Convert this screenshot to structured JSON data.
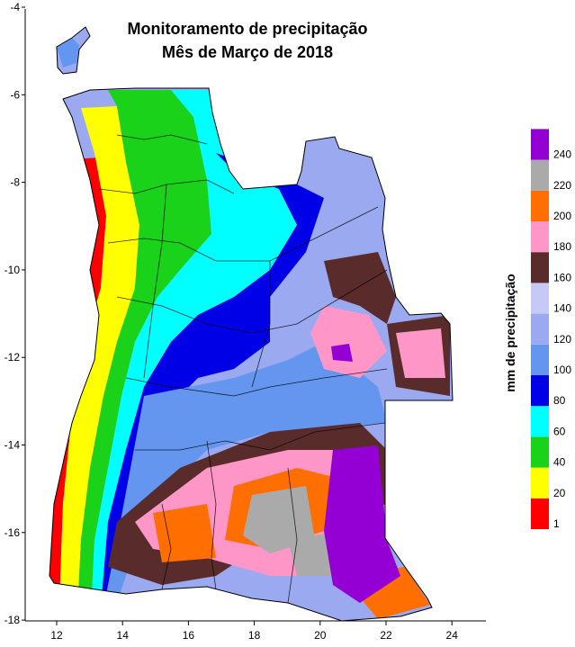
{
  "title_line1": "Monitoramento de precipitação",
  "title_line2": "Mês de Março de 2018",
  "x_ticks": [
    "12",
    "14",
    "16",
    "18",
    "20",
    "22",
    "24"
  ],
  "y_ticks": [
    "-4",
    "-6",
    "-8",
    "-10",
    "-12",
    "-14",
    "-16",
    "-18"
  ],
  "legend": {
    "title": "mm de precipitação",
    "bins": [
      {
        "label": "1",
        "color": "#ff0000"
      },
      {
        "label": "20",
        "color": "#ffff00"
      },
      {
        "label": "40",
        "color": "#19d219"
      },
      {
        "label": "60",
        "color": "#00ffff"
      },
      {
        "label": "80",
        "color": "#0000e6"
      },
      {
        "label": "100",
        "color": "#6496f0"
      },
      {
        "label": "120",
        "color": "#9ba9f0"
      },
      {
        "label": "140",
        "color": "#c6c9f5"
      },
      {
        "label": "160",
        "color": "#5a2b2b"
      },
      {
        "label": "180",
        "color": "#ff96c8"
      },
      {
        "label": "200",
        "color": "#ff6e00"
      },
      {
        "label": "220",
        "color": "#aaaaaa"
      },
      {
        "label": "240",
        "color": "#9400d3"
      }
    ]
  }
}
